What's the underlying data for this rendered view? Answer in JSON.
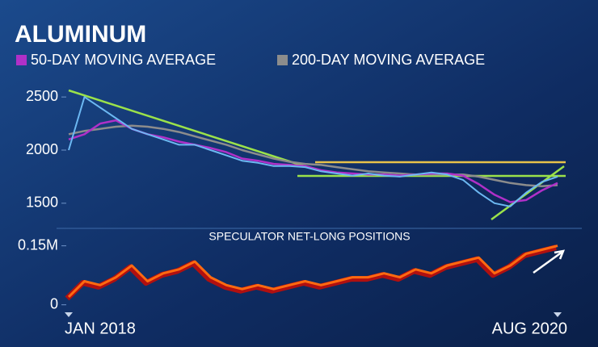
{
  "chart_data": [
    {
      "type": "line",
      "title": "ALUMINUM",
      "categories": [
        "JAN 2018",
        null,
        null,
        null,
        null,
        null,
        null,
        null,
        null,
        null,
        null,
        null,
        null,
        null,
        null,
        null,
        null,
        null,
        null,
        null,
        null,
        null,
        null,
        null,
        null,
        null,
        null,
        null,
        null,
        null,
        null,
        "AUG 2020"
      ],
      "values": [
        2000,
        2500,
        2400,
        2300,
        2200,
        2150,
        2100,
        2050,
        2050,
        2000,
        1950,
        1900,
        1880,
        1850,
        1850,
        1840,
        1800,
        1780,
        1760,
        1780,
        1760,
        1750,
        1770,
        1790,
        1770,
        1720,
        1600,
        1500,
        1470,
        1600,
        1700,
        1750
      ],
      "color": "#6cb8f2",
      "series": [
        {
          "name": "50-DAY MOVING AVERAGE",
          "color": "#b030c8",
          "values": [
            2100,
            2150,
            2250,
            2280,
            2200,
            2150,
            2120,
            2080,
            2050,
            2020,
            1980,
            1920,
            1900,
            1870,
            1860,
            1850,
            1810,
            1790,
            1780,
            1770,
            1770,
            1760,
            1770,
            1780,
            1780,
            1760,
            1680,
            1580,
            1510,
            1530,
            1620,
            1690
          ]
        },
        {
          "name": "200-DAY MOVING AVERAGE",
          "color": "#8c8c8c",
          "values": [
            2150,
            2180,
            2200,
            2220,
            2230,
            2220,
            2200,
            2170,
            2130,
            2090,
            2050,
            2000,
            1960,
            1920,
            1890,
            1870,
            1860,
            1840,
            1820,
            1800,
            1790,
            1780,
            1770,
            1770,
            1770,
            1770,
            1750,
            1720,
            1690,
            1670,
            1660,
            1670
          ]
        }
      ],
      "ylim": [
        1400,
        2600
      ],
      "yticks": [
        1500,
        2000,
        2500
      ],
      "grid": false
    },
    {
      "type": "line",
      "title": "SPECULATOR NET-LONG POSITIONS",
      "values": [
        20000,
        60000,
        50000,
        70000,
        100000,
        60000,
        80000,
        90000,
        110000,
        70000,
        50000,
        40000,
        50000,
        40000,
        50000,
        60000,
        50000,
        60000,
        70000,
        70000,
        80000,
        70000,
        90000,
        80000,
        100000,
        110000,
        120000,
        80000,
        100000,
        130000,
        140000,
        150000
      ],
      "color": "#ff6a10",
      "ylim": [
        -15000,
        180000
      ],
      "yticks": [
        0,
        {
          "value": 150000,
          "label": "0.15M"
        }
      ],
      "grid": false
    }
  ]
}
